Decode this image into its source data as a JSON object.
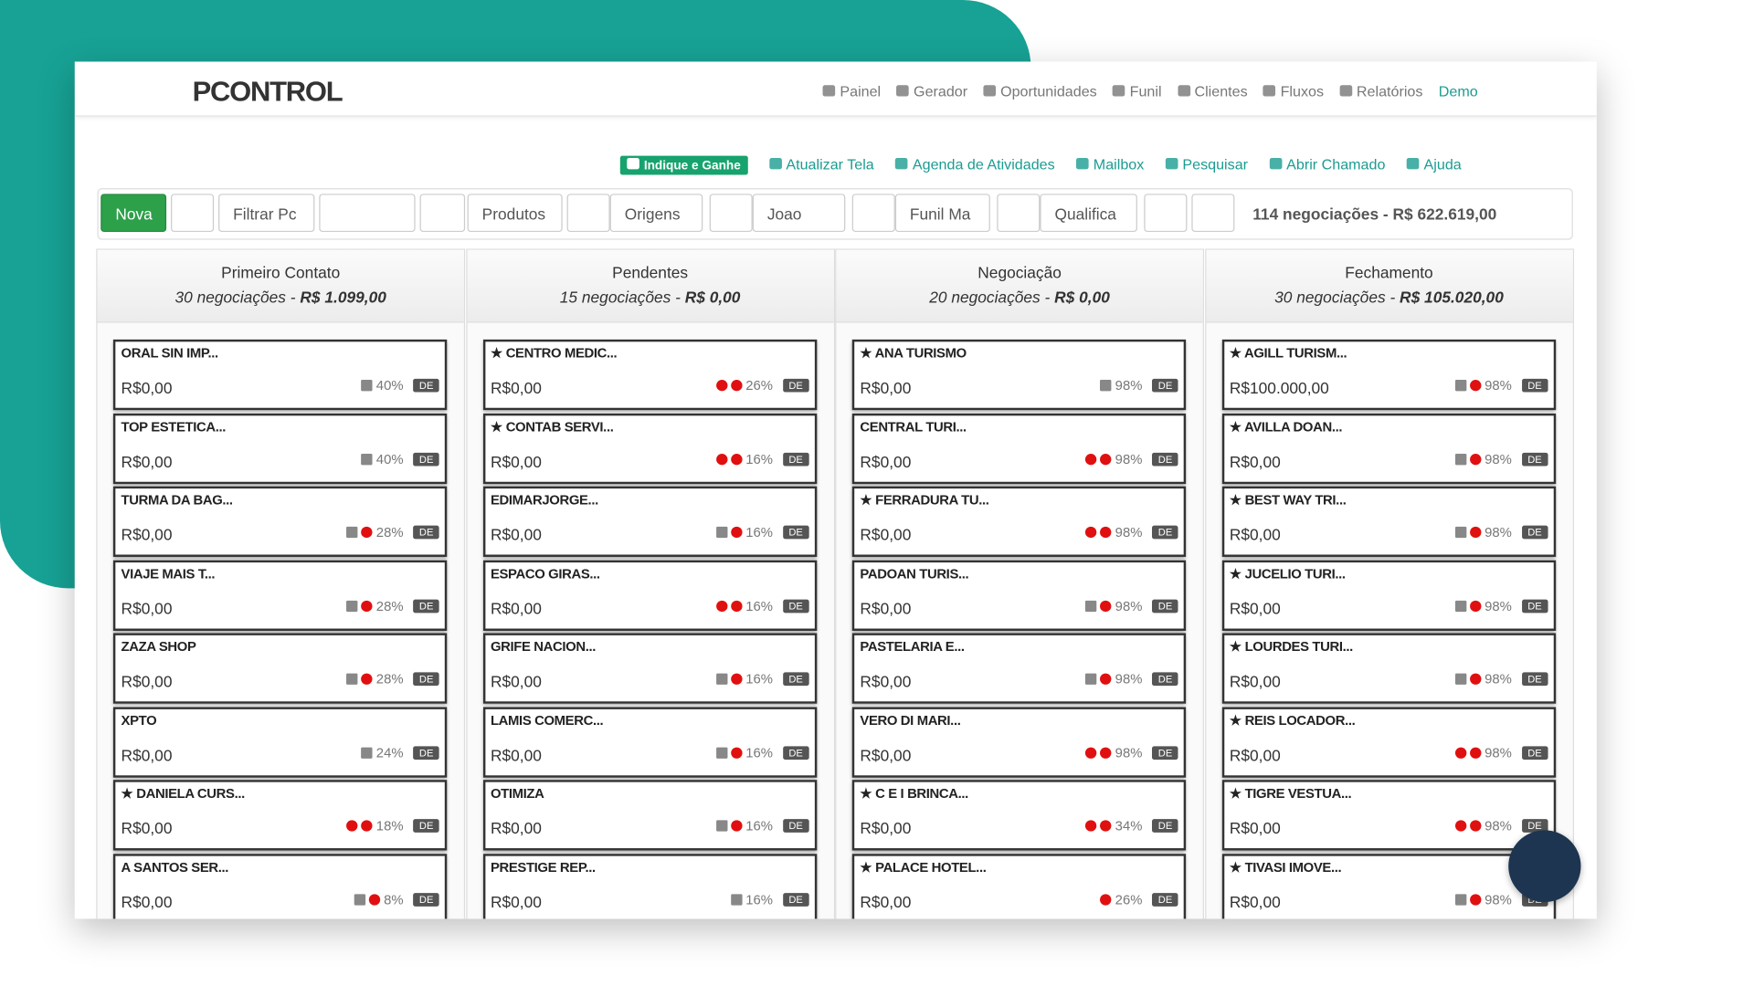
{
  "logo": "PCONTROL",
  "nav": [
    "Painel",
    "Gerador",
    "Oportunidades",
    "Funil",
    "Clientes",
    "Fluxos",
    "Relatórios",
    "Demo"
  ],
  "actions": [
    "Indique e Ganhe",
    "Atualizar Tela",
    "Agenda de Atividades",
    "Mailbox",
    "Pesquisar",
    "Abrir Chamado",
    "Ajuda"
  ],
  "toolbar": {
    "new": "Nova",
    "filter": "Filtrar Pc",
    "products": "Produtos",
    "origins": "Origens",
    "user": "Joao",
    "funnel": "Funil Ma",
    "qualification": "Qualifica",
    "summary": "114 negociações - R$ 622.619,00"
  },
  "columns": [
    {
      "title": "Primeiro Contato",
      "count": "30 negociações",
      "total": "R$ 1.099,00",
      "cards": [
        {
          "name": "ORAL SIN IMP...",
          "star": false,
          "value": "R$0,00",
          "icons": [
            "calendar"
          ],
          "percent": "40%",
          "tag": "DE"
        },
        {
          "name": "TOP ESTETICA...",
          "star": false,
          "value": "R$0,00",
          "icons": [
            "calendar"
          ],
          "percent": "40%",
          "tag": "DE"
        },
        {
          "name": "TURMA DA BAG...",
          "star": false,
          "value": "R$0,00",
          "icons": [
            "calendar",
            "alert"
          ],
          "percent": "28%",
          "tag": "DE"
        },
        {
          "name": "VIAJE MAIS T...",
          "star": false,
          "value": "R$0,00",
          "icons": [
            "calendar",
            "alert"
          ],
          "percent": "28%",
          "tag": "DE"
        },
        {
          "name": "ZAZA SHOP",
          "star": false,
          "value": "R$0,00",
          "icons": [
            "calendar",
            "alert"
          ],
          "percent": "28%",
          "tag": "DE"
        },
        {
          "name": "XPTO",
          "star": false,
          "value": "R$0,00",
          "icons": [
            "calendar"
          ],
          "percent": "24%",
          "tag": "DE"
        },
        {
          "name": "DANIELA CURS...",
          "star": true,
          "value": "R$0,00",
          "icons": [
            "clock",
            "alert"
          ],
          "percent": "18%",
          "tag": "DE"
        },
        {
          "name": "A SANTOS SER...",
          "star": false,
          "value": "R$0,00",
          "icons": [
            "calendar",
            "alert"
          ],
          "percent": "8%",
          "tag": "DE"
        }
      ]
    },
    {
      "title": "Pendentes",
      "count": "15 negociações",
      "total": "R$ 0,00",
      "cards": [
        {
          "name": "CENTRO MEDIC...",
          "star": true,
          "value": "R$0,00",
          "icons": [
            "clock",
            "alert"
          ],
          "percent": "26%",
          "tag": "DE"
        },
        {
          "name": "CONTAB SERVI...",
          "star": true,
          "value": "R$0,00",
          "icons": [
            "clock",
            "alert"
          ],
          "percent": "16%",
          "tag": "DE"
        },
        {
          "name": "EDIMARJORGE...",
          "star": false,
          "value": "R$0,00",
          "icons": [
            "calendar",
            "alert"
          ],
          "percent": "16%",
          "tag": "DE"
        },
        {
          "name": "ESPACO GIRAS...",
          "star": false,
          "value": "R$0,00",
          "icons": [
            "clock",
            "alert"
          ],
          "percent": "16%",
          "tag": "DE"
        },
        {
          "name": "GRIFE NACION...",
          "star": false,
          "value": "R$0,00",
          "icons": [
            "calendar",
            "alert"
          ],
          "percent": "16%",
          "tag": "DE"
        },
        {
          "name": "LAMIS COMERC...",
          "star": false,
          "value": "R$0,00",
          "icons": [
            "calendar",
            "alert"
          ],
          "percent": "16%",
          "tag": "DE"
        },
        {
          "name": "OTIMIZA",
          "star": false,
          "value": "R$0,00",
          "icons": [
            "calendar",
            "alert"
          ],
          "percent": "16%",
          "tag": "DE"
        },
        {
          "name": "PRESTIGE REP...",
          "star": false,
          "value": "R$0,00",
          "icons": [
            "calendar"
          ],
          "percent": "16%",
          "tag": "DE"
        }
      ]
    },
    {
      "title": "Negociação",
      "count": "20 negociações",
      "total": "R$ 0,00",
      "cards": [
        {
          "name": "ANA TURISMO",
          "star": true,
          "value": "R$0,00",
          "icons": [
            "calendar"
          ],
          "percent": "98%",
          "tag": "DE"
        },
        {
          "name": "CENTRAL TURI...",
          "star": false,
          "value": "R$0,00",
          "icons": [
            "clock",
            "alert"
          ],
          "percent": "98%",
          "tag": "DE"
        },
        {
          "name": "FERRADURA TU...",
          "star": true,
          "value": "R$0,00",
          "icons": [
            "clock",
            "alert"
          ],
          "percent": "98%",
          "tag": "DE"
        },
        {
          "name": "PADOAN TURIS...",
          "star": false,
          "value": "R$0,00",
          "icons": [
            "calendar",
            "alert"
          ],
          "percent": "98%",
          "tag": "DE"
        },
        {
          "name": "PASTELARIA E...",
          "star": false,
          "value": "R$0,00",
          "icons": [
            "calendar",
            "alert"
          ],
          "percent": "98%",
          "tag": "DE"
        },
        {
          "name": "VERO DI MARI...",
          "star": false,
          "value": "R$0,00",
          "icons": [
            "clock",
            "alert"
          ],
          "percent": "98%",
          "tag": "DE"
        },
        {
          "name": "C E I BRINCA...",
          "star": true,
          "value": "R$0,00",
          "icons": [
            "clock",
            "alert"
          ],
          "percent": "34%",
          "tag": "DE"
        },
        {
          "name": "PALACE HOTEL...",
          "star": true,
          "value": "R$0,00",
          "icons": [
            "clock"
          ],
          "percent": "26%",
          "tag": "DE"
        }
      ]
    },
    {
      "title": "Fechamento",
      "count": "30 negociações",
      "total": "R$ 105.020,00",
      "cards": [
        {
          "name": "AGILL TURISM...",
          "star": true,
          "value": "R$100.000,00",
          "icons": [
            "calendar",
            "alert"
          ],
          "percent": "98%",
          "tag": "DE"
        },
        {
          "name": "AVILLA DOAN...",
          "star": true,
          "value": "R$0,00",
          "icons": [
            "calendar",
            "alert"
          ],
          "percent": "98%",
          "tag": "DE"
        },
        {
          "name": "BEST WAY TRI...",
          "star": true,
          "value": "R$0,00",
          "icons": [
            "calendar",
            "alert"
          ],
          "percent": "98%",
          "tag": "DE"
        },
        {
          "name": "JUCELIO TURI...",
          "star": true,
          "value": "R$0,00",
          "icons": [
            "calendar",
            "alert"
          ],
          "percent": "98%",
          "tag": "DE"
        },
        {
          "name": "LOURDES TURI...",
          "star": true,
          "value": "R$0,00",
          "icons": [
            "calendar",
            "alert"
          ],
          "percent": "98%",
          "tag": "DE"
        },
        {
          "name": "REIS LOCADOR...",
          "star": true,
          "value": "R$0,00",
          "icons": [
            "clock",
            "alert"
          ],
          "percent": "98%",
          "tag": "DE"
        },
        {
          "name": "TIGRE VESTUA...",
          "star": true,
          "value": "R$0,00",
          "icons": [
            "clock",
            "alert"
          ],
          "percent": "98%",
          "tag": "DE"
        },
        {
          "name": "TIVASI IMOVE...",
          "star": true,
          "value": "R$0,00",
          "icons": [
            "calendar",
            "alert"
          ],
          "percent": "98%",
          "tag": "DE"
        }
      ]
    }
  ]
}
